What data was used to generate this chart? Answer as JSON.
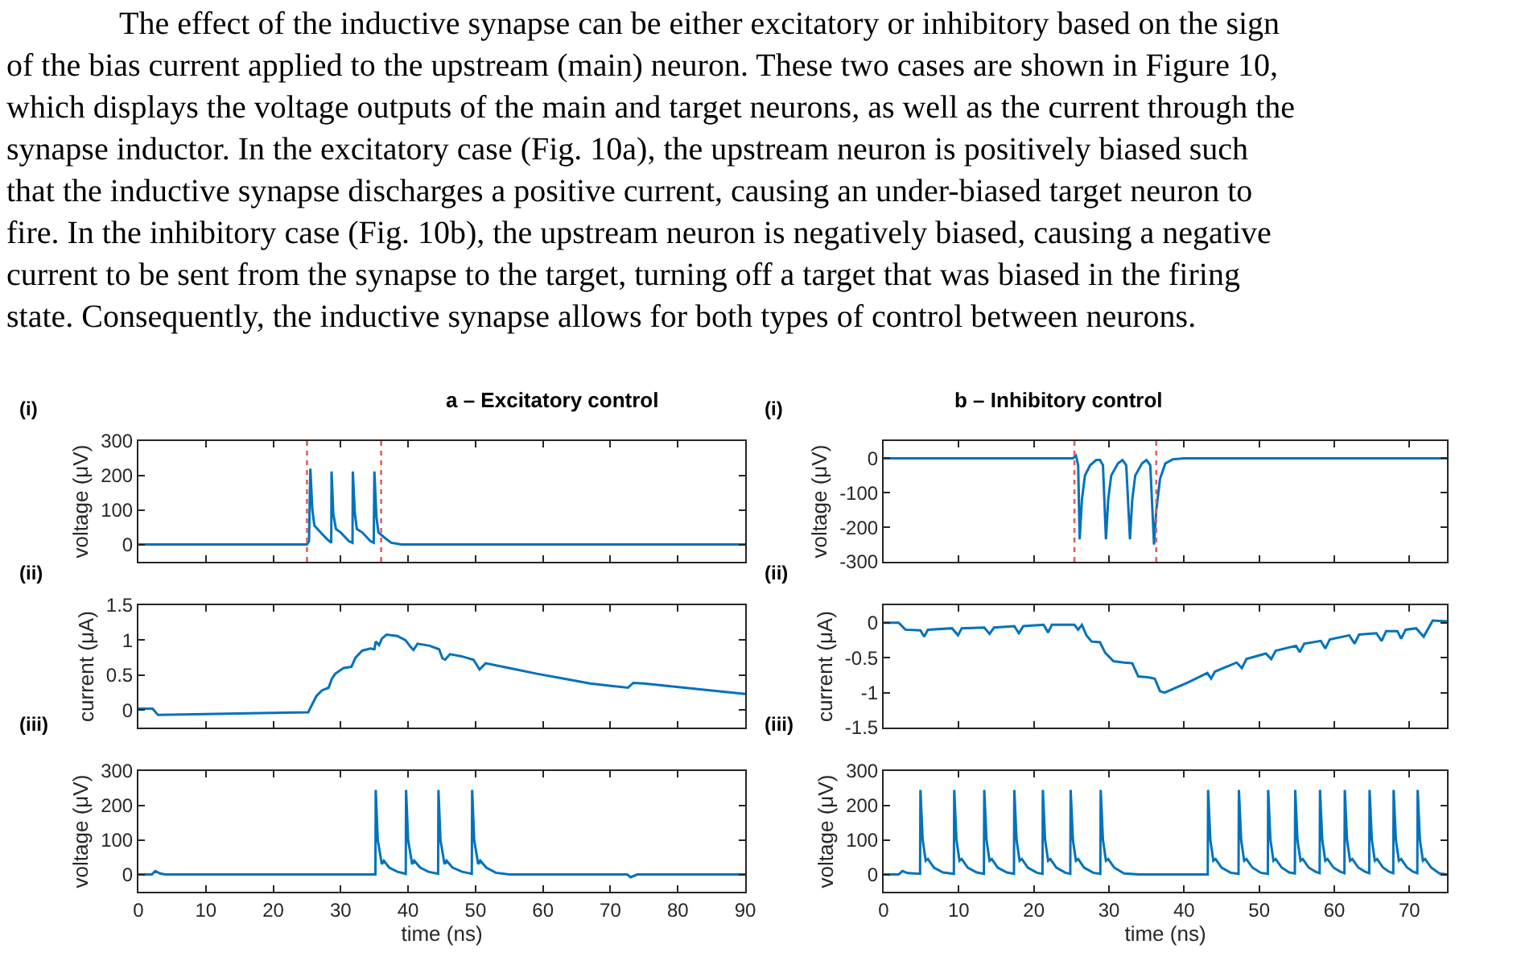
{
  "chart_data": [
    {
      "type": "other",
      "annotations": [
        "The effect of the inductive synapse can be either excitatory or inhibitory based on the sign of the bias current applied to the upstream (main) neuron. These two cases are shown in Figure 10, which displays the voltage outputs of the main and target neurons, as well as the current through the synapse inductor. In the excitatory case (Fig. 10a), the upstream neuron is positively biased such that the inductive synapse discharges a positive current, causing an under-biased target neuron to fire. In the inhibitory case (Fig. 10b), the upstream neuron is negatively biased, causing a negative current to be sent from the synapse to the target, turning off a target that was biased in the firing state. Consequently, the inductive synapse allows for both types of control between neurons."
      ]
    },
    {
      "type": "line",
      "title": "a – Excitatory control",
      "ylabel": "voltage (μV)",
      "annotations": [
        "(i)"
      ],
      "color": "#0072bd",
      "xlim": [
        0,
        90
      ],
      "xticks": [
        0,
        10,
        20,
        30,
        40,
        50,
        60,
        70,
        80,
        90
      ],
      "ylim": [
        -50,
        300
      ],
      "yticks": [
        0,
        100,
        200,
        300
      ],
      "tick_labels": "y",
      "x": [
        0,
        25,
        25.3,
        25.5,
        25.8,
        26.1,
        26.8,
        28.0,
        28.6,
        28.65,
        28.9,
        29.3,
        30,
        31.2,
        31.75,
        31.8,
        32.1,
        32.4,
        33.2,
        34.4,
        34.9,
        35.0,
        35.3,
        35.6,
        36.5,
        37.5,
        39,
        90
      ],
      "values": [
        0,
        0,
        10,
        220,
        100,
        55,
        40,
        15,
        5,
        212,
        90,
        45,
        35,
        10,
        5,
        212,
        90,
        45,
        35,
        10,
        5,
        212,
        80,
        35,
        20,
        5,
        0,
        0
      ],
      "ref_lines": [
        {
          "axis": "x",
          "value": 25,
          "color": "#e06060",
          "line_style": "dotted"
        },
        {
          "axis": "x",
          "value": 36,
          "color": "#e06060",
          "line_style": "dotted"
        }
      ]
    },
    {
      "type": "line",
      "ylabel": "current (μA)",
      "annotations": [
        "(ii)"
      ],
      "color": "#0072bd",
      "xlim": [
        0,
        90
      ],
      "xticks": [
        0,
        10,
        20,
        30,
        40,
        50,
        60,
        70,
        80,
        90
      ],
      "ylim": [
        -0.25,
        1.5
      ],
      "yticks": [
        0,
        0.5,
        1,
        1.5
      ],
      "tick_labels": "y",
      "x": [
        0,
        2.1,
        2.9,
        25.2,
        25.6,
        26.4,
        27.2,
        28.2,
        28.7,
        29.2,
        30.4,
        31.6,
        32.2,
        33.2,
        34.4,
        35.0,
        35.2,
        35.7,
        36.1,
        36.8,
        38.4,
        39.6,
        40.4,
        40.8,
        41.4,
        43.2,
        44.6,
        45.1,
        45.5,
        46.2,
        47.9,
        49.7,
        50.6,
        51.5,
        55.1,
        59.1,
        63.1,
        67.0,
        72.6,
        73.4,
        75.0,
        83,
        90
      ],
      "values": [
        0.02,
        0.02,
        -0.07,
        -0.03,
        0.05,
        0.2,
        0.28,
        0.32,
        0.45,
        0.52,
        0.6,
        0.62,
        0.75,
        0.85,
        0.88,
        0.87,
        0.98,
        0.93,
        1.02,
        1.08,
        1.06,
        1.0,
        0.9,
        0.86,
        0.95,
        0.92,
        0.87,
        0.74,
        0.72,
        0.8,
        0.77,
        0.72,
        0.58,
        0.67,
        0.6,
        0.52,
        0.45,
        0.38,
        0.32,
        0.39,
        0.38,
        0.3,
        0.23
      ]
    },
    {
      "type": "line",
      "ylabel": "voltage (μV)",
      "xlabel": "time (ns)",
      "annotations": [
        "(iii)"
      ],
      "color": "#0072bd",
      "xlim": [
        0,
        90
      ],
      "xticks": [
        0,
        10,
        20,
        30,
        40,
        50,
        60,
        70,
        80,
        90
      ],
      "ylim": [
        -50,
        300
      ],
      "yticks": [
        0,
        100,
        200,
        300
      ],
      "x": [
        0,
        2,
        2.5,
        3.2,
        4,
        35.15,
        35.2,
        35.5,
        36.1,
        36.4,
        37.2,
        38.4,
        39.65,
        39.7,
        40.0,
        40.6,
        40.9,
        41.8,
        43,
        44.45,
        44.5,
        44.8,
        45.4,
        45.7,
        46.6,
        48,
        49.45,
        49.5,
        49.8,
        50.4,
        50.7,
        51.6,
        53,
        55,
        72.5,
        73,
        74,
        90
      ],
      "values": [
        0,
        0,
        10,
        3,
        0,
        0,
        245,
        100,
        30,
        40,
        20,
        8,
        2,
        245,
        100,
        30,
        40,
        20,
        8,
        2,
        245,
        100,
        30,
        40,
        20,
        8,
        2,
        245,
        100,
        30,
        40,
        20,
        5,
        0,
        0,
        -8,
        0,
        0
      ]
    },
    {
      "type": "line",
      "title": "b – Inhibitory control",
      "ylabel": "voltage (μV)",
      "annotations": [
        "(i)"
      ],
      "color": "#0072bd",
      "xlim": [
        0,
        75
      ],
      "xticks": [
        0,
        10,
        20,
        30,
        40,
        50,
        60,
        70
      ],
      "ylim": [
        -300,
        50
      ],
      "yticks": [
        -300,
        -200,
        -100,
        0
      ],
      "tick_labels": "y",
      "x": [
        0,
        25.2,
        25.6,
        25.9,
        26.1,
        26.4,
        26.8,
        27.5,
        28.3,
        28.8,
        29.2,
        29.6,
        29.9,
        30.3,
        31.2,
        31.8,
        32.3,
        32.8,
        33.1,
        33.5,
        34.4,
        35.0,
        35.5,
        36.0,
        36.3,
        36.8,
        37.5,
        38.5,
        40,
        75
      ],
      "values": [
        0,
        0,
        8,
        -20,
        -235,
        -120,
        -50,
        -20,
        -5,
        -5,
        -20,
        -235,
        -120,
        -50,
        -15,
        -5,
        -20,
        -235,
        -120,
        -50,
        -15,
        -5,
        -20,
        -250,
        -150,
        -60,
        -15,
        -3,
        0,
        0
      ],
      "ref_lines": [
        {
          "axis": "x",
          "value": 25.4,
          "color": "#e06060",
          "line_style": "dotted"
        },
        {
          "axis": "x",
          "value": 36.3,
          "color": "#e06060",
          "line_style": "dotted"
        }
      ]
    },
    {
      "type": "line",
      "ylabel": "current (μA)",
      "annotations": [
        "(ii)"
      ],
      "color": "#0072bd",
      "xlim": [
        0,
        75
      ],
      "xticks": [
        0,
        10,
        20,
        30,
        40,
        50,
        60,
        70
      ],
      "ylim": [
        -1.5,
        0.25
      ],
      "yticks": [
        -1.5,
        -1,
        -0.5,
        0
      ],
      "tick_labels": "y",
      "x": [
        0,
        2,
        2.9,
        4.9,
        5.4,
        5.9,
        9.1,
        9.9,
        10.4,
        13.4,
        14.1,
        14.7,
        17.4,
        18,
        18.6,
        21.3,
        21.9,
        22.4,
        25.4,
        25.9,
        26.4,
        27,
        27.7,
        28.8,
        29.5,
        30.6,
        32,
        33.1,
        33.9,
        35.2,
        36.1,
        36.8,
        37.4,
        40.6,
        43.1,
        43.6,
        44.1,
        47,
        47.7,
        48.3,
        50.9,
        51.6,
        52.2,
        54.9,
        55.4,
        56,
        58.2,
        58.8,
        59.4,
        62,
        62.7,
        63.3,
        65.6,
        66.3,
        66.9,
        68.4,
        68.9,
        69.5,
        70.9,
        71.9,
        73.1,
        75
      ],
      "values": [
        0,
        0,
        -0.1,
        -0.11,
        -0.2,
        -0.1,
        -0.08,
        -0.18,
        -0.08,
        -0.07,
        -0.16,
        -0.07,
        -0.05,
        -0.15,
        -0.05,
        -0.03,
        -0.14,
        -0.03,
        -0.03,
        -0.1,
        -0.03,
        -0.18,
        -0.27,
        -0.28,
        -0.43,
        -0.55,
        -0.57,
        -0.58,
        -0.77,
        -0.78,
        -0.8,
        -0.98,
        -1.0,
        -0.85,
        -0.72,
        -0.8,
        -0.7,
        -0.57,
        -0.65,
        -0.52,
        -0.44,
        -0.52,
        -0.4,
        -0.33,
        -0.42,
        -0.3,
        -0.26,
        -0.37,
        -0.24,
        -0.18,
        -0.3,
        -0.17,
        -0.15,
        -0.26,
        -0.12,
        -0.12,
        -0.23,
        -0.1,
        -0.08,
        -0.2,
        0.03,
        0.02
      ]
    },
    {
      "type": "line",
      "ylabel": "voltage (μV)",
      "xlabel": "time (ns)",
      "annotations": [
        "(iii)"
      ],
      "color": "#0072bd",
      "xlim": [
        0,
        75
      ],
      "xticks": [
        0,
        10,
        20,
        30,
        40,
        50,
        60,
        70
      ],
      "ylim": [
        -50,
        300
      ],
      "yticks": [
        0,
        100,
        200,
        300
      ],
      "x": [
        0,
        2,
        2.5,
        3.2,
        4.85,
        4.9,
        5.2,
        5.6,
        5.9,
        6.7,
        7.9,
        9.35,
        9.4,
        9.7,
        10.1,
        10.4,
        11.2,
        12.4,
        13.35,
        13.4,
        13.7,
        14.1,
        14.4,
        15.2,
        16.4,
        17.35,
        17.4,
        17.7,
        18.1,
        18.4,
        19.2,
        20.4,
        21.15,
        21.2,
        21.5,
        21.9,
        22.2,
        23,
        24.2,
        24.85,
        24.9,
        25.2,
        25.6,
        25.9,
        26.7,
        27.9,
        28.85,
        28.9,
        29.2,
        29.6,
        29.9,
        30.7,
        32,
        34,
        43.15,
        43.2,
        43.5,
        43.9,
        44.2,
        45,
        46.2,
        47.25,
        47.3,
        47.6,
        48,
        48.3,
        49.1,
        50.2,
        51.15,
        51.2,
        51.5,
        51.9,
        52.2,
        53,
        54,
        54.75,
        54.8,
        55.1,
        55.5,
        55.8,
        56.6,
        57.5,
        58.05,
        58.1,
        58.4,
        58.8,
        59.1,
        59.9,
        60.8,
        61.35,
        61.4,
        61.7,
        62.1,
        62.4,
        63.2,
        64.1,
        64.65,
        64.7,
        65,
        65.4,
        65.7,
        66.5,
        67.3,
        67.85,
        67.9,
        68.2,
        68.6,
        68.9,
        69.7,
        70.5,
        71.05,
        71.1,
        71.4,
        71.8,
        72.1,
        72.9,
        74,
        75
      ],
      "values": [
        0,
        0,
        10,
        4,
        2,
        245,
        100,
        40,
        45,
        20,
        6,
        2,
        245,
        100,
        40,
        45,
        20,
        6,
        2,
        245,
        100,
        40,
        45,
        20,
        6,
        2,
        245,
        100,
        40,
        45,
        20,
        5,
        2,
        245,
        100,
        40,
        45,
        20,
        5,
        2,
        245,
        100,
        40,
        45,
        20,
        5,
        2,
        245,
        100,
        40,
        45,
        20,
        3,
        0,
        0,
        245,
        100,
        40,
        45,
        20,
        5,
        2,
        245,
        100,
        40,
        45,
        20,
        5,
        2,
        245,
        100,
        40,
        45,
        20,
        6,
        3,
        245,
        100,
        40,
        45,
        20,
        8,
        4,
        245,
        100,
        40,
        45,
        20,
        8,
        4,
        245,
        100,
        40,
        45,
        20,
        8,
        4,
        245,
        100,
        40,
        45,
        20,
        8,
        4,
        245,
        100,
        40,
        45,
        20,
        8,
        4,
        245,
        100,
        40,
        45,
        20,
        3,
        0
      ]
    }
  ]
}
